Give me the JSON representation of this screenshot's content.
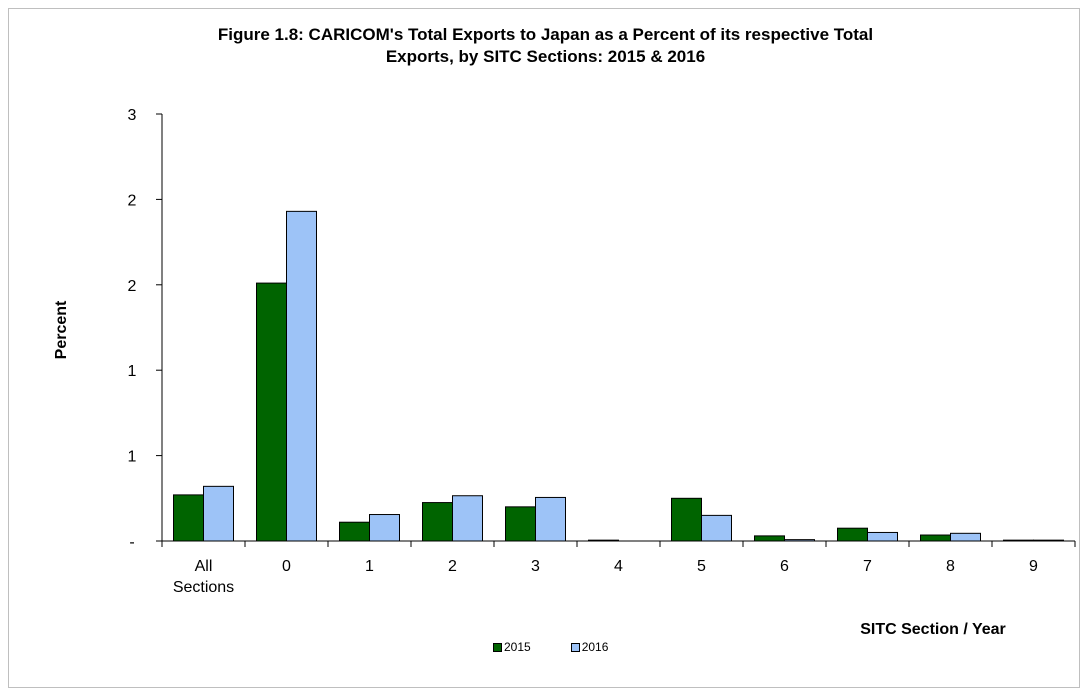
{
  "chart_data": {
    "type": "bar",
    "title": "Figure 1.8: CARICOM's  Total Exports to Japan as a Percent of its respective Total Exports,  by SITC Sections: 2015 & 2016",
    "title_lines": [
      "Figure 1.8: CARICOM's  Total Exports to Japan as a Percent of its respective Total",
      "Exports,  by SITC Sections: 2015 & 2016"
    ],
    "xlabel": "SITC Section / Year",
    "ylabel": "Percent",
    "categories": [
      [
        "All",
        "Sections"
      ],
      [
        "0"
      ],
      [
        "1"
      ],
      [
        "2"
      ],
      [
        "3"
      ],
      [
        "4"
      ],
      [
        "5"
      ],
      [
        "6"
      ],
      [
        "7"
      ],
      [
        "8"
      ],
      [
        "9"
      ]
    ],
    "y_tick_labels": [
      "-",
      "1",
      "1",
      "2",
      "2",
      "3"
    ],
    "ylim": [
      0,
      2.5
    ],
    "grid": false,
    "legend_position": "bottom",
    "series": [
      {
        "name": "2015",
        "color": "#006400",
        "values": [
          0.27,
          1.51,
          0.11,
          0.225,
          0.2,
          0.005,
          0.25,
          0.03,
          0.075,
          0.035,
          0.005
        ]
      },
      {
        "name": "2016",
        "color": "#9dc3f7",
        "values": [
          0.32,
          1.93,
          0.155,
          0.265,
          0.255,
          0.0,
          0.15,
          0.008,
          0.05,
          0.045,
          0.005
        ]
      }
    ]
  }
}
